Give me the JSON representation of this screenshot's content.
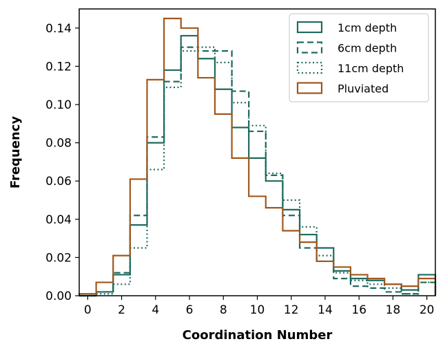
{
  "chart_data": {
    "type": "histogram-step",
    "xlabel": "Coordination Number",
    "ylabel": "Frequency",
    "xlim": [
      -0.5,
      20.5
    ],
    "ylim": [
      0,
      0.15
    ],
    "xticks": [
      0,
      2,
      4,
      6,
      8,
      10,
      12,
      14,
      16,
      18,
      20
    ],
    "yticks": [
      0.0,
      0.02,
      0.04,
      0.06,
      0.08,
      0.1,
      0.12,
      0.14
    ],
    "ytick_labels": [
      "0.00",
      "0.02",
      "0.04",
      "0.06",
      "0.08",
      "0.10",
      "0.12",
      "0.14"
    ],
    "bin_edges": [
      -0.5,
      0.5,
      1.5,
      2.5,
      3.5,
      4.5,
      5.5,
      6.5,
      7.5,
      8.5,
      9.5,
      10.5,
      11.5,
      12.5,
      13.5,
      14.5,
      15.5,
      16.5,
      17.5,
      18.5,
      19.5,
      20.5
    ],
    "legend_position": "top-right",
    "grid": false,
    "series": [
      {
        "name": "1cm depth",
        "color": "#1d6a5f",
        "style": "solid",
        "values": [
          0.0,
          0.002,
          0.011,
          0.037,
          0.08,
          0.118,
          0.136,
          0.124,
          0.108,
          0.088,
          0.072,
          0.06,
          0.045,
          0.032,
          0.025,
          0.013,
          0.009,
          0.008,
          0.006,
          0.003,
          0.011
        ]
      },
      {
        "name": "6cm depth",
        "color": "#1d6a5f",
        "style": "dashed",
        "values": [
          0.0,
          0.002,
          0.012,
          0.042,
          0.083,
          0.112,
          0.13,
          0.128,
          0.128,
          0.107,
          0.086,
          0.063,
          0.042,
          0.025,
          0.018,
          0.009,
          0.005,
          0.004,
          0.002,
          0.001,
          0.007
        ]
      },
      {
        "name": "11cm depth",
        "color": "#1d6a5f",
        "style": "dotted",
        "values": [
          0.0,
          0.001,
          0.006,
          0.025,
          0.066,
          0.109,
          0.128,
          0.13,
          0.122,
          0.101,
          0.089,
          0.064,
          0.05,
          0.036,
          0.021,
          0.012,
          0.008,
          0.006,
          0.004,
          0.001,
          0.007
        ]
      },
      {
        "name": "Pluviated",
        "color": "#a0561b",
        "style": "solid",
        "values": [
          0.001,
          0.007,
          0.021,
          0.061,
          0.113,
          0.145,
          0.14,
          0.114,
          0.095,
          0.072,
          0.052,
          0.046,
          0.034,
          0.028,
          0.018,
          0.015,
          0.011,
          0.009,
          0.006,
          0.005,
          0.009
        ]
      }
    ]
  }
}
